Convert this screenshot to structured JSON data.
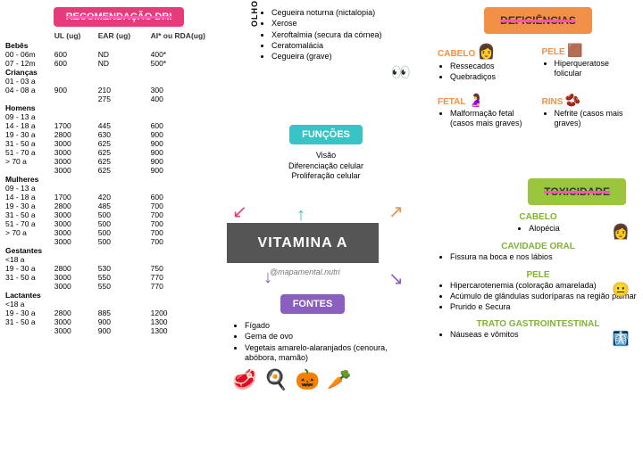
{
  "center_title": "VITAMINA A",
  "handle": "@mapamental.nutri",
  "rec": {
    "title": "RECOMENDAÇÃO DRI",
    "cols": [
      "",
      "UL (ug)",
      "EAR (ug)",
      "AI* ou RDA(ug)"
    ],
    "groups": [
      {
        "name": "Bebês",
        "rows": [
          [
            "00 - 06m",
            "600",
            "ND",
            "400*"
          ],
          [
            "07 - 12m",
            "600",
            "ND",
            "500*"
          ]
        ]
      },
      {
        "name": "Crianças",
        "rows": [
          [
            "01 - 03 a",
            "",
            "",
            ""
          ],
          [
            "04 - 08 a",
            "900",
            "210",
            "300"
          ],
          [
            "",
            "",
            "275",
            "400"
          ]
        ]
      },
      {
        "name": "Homens",
        "rows": [
          [
            "09 - 13 a",
            "",
            "",
            ""
          ],
          [
            "14 - 18 a",
            "1700",
            "445",
            "600"
          ],
          [
            "19 - 30 a",
            "2800",
            "630",
            "900"
          ],
          [
            "31 - 50 a",
            "3000",
            "625",
            "900"
          ],
          [
            "51 - 70 a",
            "3000",
            "625",
            "900"
          ],
          [
            "> 70 a",
            "3000",
            "625",
            "900"
          ],
          [
            "",
            "3000",
            "625",
            "900"
          ]
        ]
      },
      {
        "name": "Mulheres",
        "rows": [
          [
            "09 - 13 a",
            "",
            "",
            ""
          ],
          [
            "14 - 18 a",
            "1700",
            "420",
            "600"
          ],
          [
            "19 - 30 a",
            "2800",
            "485",
            "700"
          ],
          [
            "31 - 50 a",
            "3000",
            "500",
            "700"
          ],
          [
            "51 - 70 a",
            "3000",
            "500",
            "700"
          ],
          [
            "> 70 a",
            "3000",
            "500",
            "700"
          ],
          [
            "",
            "3000",
            "500",
            "700"
          ]
        ]
      },
      {
        "name": "Gestantes",
        "rows": [
          [
            "<18 a",
            "",
            "",
            ""
          ],
          [
            "19 - 30 a",
            "2800",
            "530",
            "750"
          ],
          [
            "31 - 50 a",
            "3000",
            "550",
            "770"
          ],
          [
            "",
            "3000",
            "550",
            "770"
          ]
        ]
      },
      {
        "name": "Lactantes",
        "rows": [
          [
            "<18 a",
            "",
            "",
            ""
          ],
          [
            "19 - 30 a",
            "2800",
            "885",
            "1200"
          ],
          [
            "31 - 50 a",
            "3000",
            "900",
            "1300"
          ],
          [
            "",
            "3000",
            "900",
            "1300"
          ]
        ]
      }
    ]
  },
  "olhos": {
    "label": "OLHOS",
    "items": [
      "Cegueira noturna (nictalopia)",
      "Xerose",
      "Xeroftalmia (secura da córnea)",
      "Ceratomalácia",
      "Cegueira (grave)"
    ]
  },
  "funcoes": {
    "title": "FUNÇÕES",
    "items": [
      "Visão",
      "Diferenciação celular",
      "Proliferação celular"
    ]
  },
  "fontes": {
    "title": "FONTES",
    "items": [
      "Fígado",
      "Gema de ovo",
      "Vegetais amarelo-alaranjados (cenoura, abóbora, mamão)"
    ]
  },
  "def": {
    "title": "DEFICIÊNCIAS",
    "cabelo": {
      "label": "CABELO",
      "items": [
        "Ressecados",
        "Quebradiços"
      ]
    },
    "pele": {
      "label": "PELE",
      "items": [
        "Hiperqueratose folicular"
      ]
    },
    "fetal": {
      "label": "FETAL",
      "items": [
        "Malformação fetal (casos mais graves)"
      ]
    },
    "rins": {
      "label": "RINS",
      "items": [
        "Nefrite (casos mais graves)"
      ]
    }
  },
  "tox": {
    "title": "TOXICIDADE",
    "cabelo": {
      "label": "CABELO",
      "items": [
        "Alopécia"
      ]
    },
    "oral": {
      "label": "CAVIDADE ORAL",
      "items": [
        "Fissura na boca e nos lábios"
      ]
    },
    "pele": {
      "label": "PELE",
      "items": [
        "Hipercarotenemia (coloração amarelada)",
        "Acúmulo de glândulas sudoríparas na região palmar",
        "Prurido e Secura"
      ]
    },
    "gi": {
      "label": "TRATO GASTROINTESTINAL",
      "items": [
        "Náuseas e vômitos"
      ]
    }
  },
  "colors": {
    "pink": "#e53b7a",
    "teal": "#38c4c6",
    "purple": "#8b5fbf",
    "orange": "#f29047",
    "green": "#9bc53d",
    "center": "#555555"
  }
}
